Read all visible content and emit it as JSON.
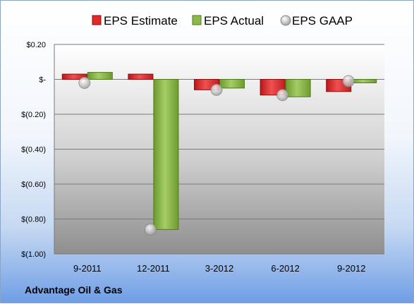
{
  "company": "Advantage Oil & Gas",
  "colors": {
    "estimate": "#e02a2a",
    "actual": "#8cb84a",
    "gaap": "#c8c8c8",
    "plot_bg_top": "#ffffff",
    "plot_bg_bottom": "#8e8e8e"
  },
  "chart_data": {
    "type": "bar",
    "categories": [
      "9-2011",
      "12-2011",
      "3-2012",
      "6-2012",
      "9-2012"
    ],
    "series": [
      {
        "name": "EPS Estimate",
        "kind": "bar",
        "values": [
          0.03,
          0.03,
          -0.06,
          -0.09,
          -0.07
        ]
      },
      {
        "name": "EPS Actual",
        "kind": "bar",
        "values": [
          0.04,
          -0.86,
          -0.05,
          -0.1,
          -0.02
        ]
      },
      {
        "name": "EPS GAAP",
        "kind": "marker",
        "values": [
          -0.02,
          -0.86,
          -0.06,
          -0.09,
          -0.01
        ]
      }
    ],
    "ylim": [
      -1.0,
      0.2
    ],
    "yticks": [
      0.2,
      0,
      -0.2,
      -0.4,
      -0.6,
      -0.8,
      -1.0
    ],
    "ytick_labels": [
      "$0.20",
      "$-",
      "$(0.20)",
      "$(0.40)",
      "$(0.60)",
      "$(0.80)",
      "$(1.00)"
    ],
    "grid": true,
    "legend_position": "top"
  }
}
